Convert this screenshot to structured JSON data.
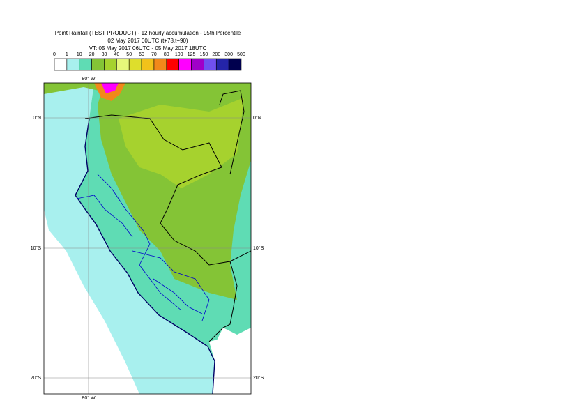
{
  "header": {
    "title": [
      "Point Rainfall (TEST PRODUCT) - 12 hourly accumulation - 95th Percentile",
      "02 May 2017 00UTC (t+78,t+90)",
      "VT: 05 May 2017 06UTC - 05 May 2017 18UTC"
    ]
  },
  "legend": {
    "labels": [
      "0",
      "1",
      "10",
      "20",
      "30",
      "40",
      "50",
      "60",
      "70",
      "80",
      "100",
      "125",
      "150",
      "200",
      "300",
      "500"
    ],
    "colors": [
      "#ffffff",
      "#a8f0ee",
      "#5fdcb4",
      "#84c436",
      "#a6d22e",
      "#e6f77a",
      "#dede2c",
      "#f2c21a",
      "#f2881a",
      "#ff0000",
      "#ff00ff",
      "#a000c8",
      "#7050f0",
      "#2424a8",
      "#00004e"
    ]
  },
  "map": {
    "lon_label": "80° W",
    "lat_labels": [
      "0°N",
      "10°S",
      "20°S"
    ]
  }
}
